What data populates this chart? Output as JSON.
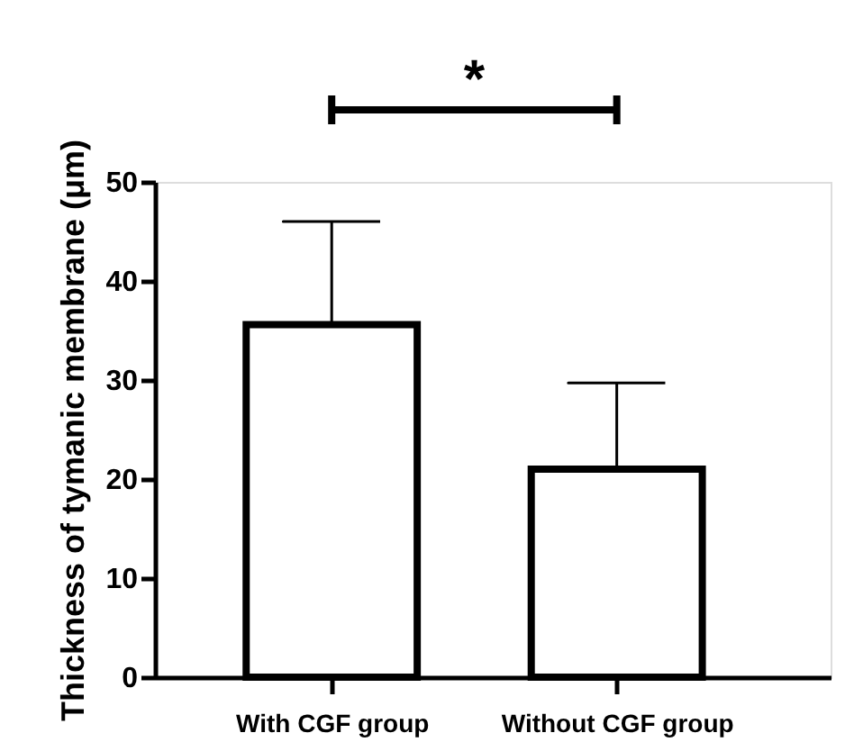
{
  "chart_data": {
    "type": "bar",
    "ylabel": "Thickness of tymanic membrane (μm)",
    "categories": [
      "With CGF group",
      "Without CGF group"
    ],
    "values": [
      35.6,
      21.0
    ],
    "color": "#ffffff",
    "errors": [
      [
        35.6,
        46.0
      ],
      [
        21.0,
        29.7
      ]
    ],
    "ylim": [
      0,
      50
    ],
    "yticks": [
      0,
      10,
      20,
      30,
      40,
      50
    ],
    "grid": false,
    "annotations": [
      "*"
    ]
  }
}
